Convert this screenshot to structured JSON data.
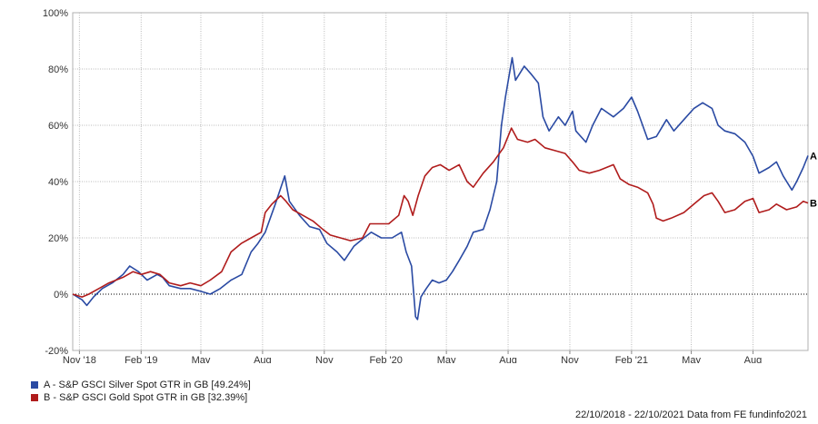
{
  "chart_data": {
    "type": "line",
    "title": "",
    "xlabel": "",
    "ylabel": "",
    "ylim": [
      -20,
      100
    ],
    "y_ticks": [
      -20,
      0,
      20,
      40,
      60,
      80,
      100
    ],
    "y_tick_labels": [
      "-20%",
      "0%",
      "20%",
      "40%",
      "60%",
      "80%",
      "100%"
    ],
    "x_ticks": [
      {
        "date": "2018-11-01",
        "label": "Nov '18"
      },
      {
        "date": "2019-02-01",
        "label": "Feb '19"
      },
      {
        "date": "2019-05-01",
        "label": "May"
      },
      {
        "date": "2019-08-01",
        "label": "Aug"
      },
      {
        "date": "2019-11-01",
        "label": "Nov"
      },
      {
        "date": "2020-02-01",
        "label": "Feb '20"
      },
      {
        "date": "2020-05-01",
        "label": "May"
      },
      {
        "date": "2020-08-01",
        "label": "Aug"
      },
      {
        "date": "2020-11-01",
        "label": "Nov"
      },
      {
        "date": "2021-02-01",
        "label": "Feb '21"
      },
      {
        "date": "2021-05-01",
        "label": "May"
      },
      {
        "date": "2021-08-01",
        "label": "Aug"
      }
    ],
    "x_range": [
      "2018-10-22",
      "2021-10-22"
    ],
    "grid": true,
    "zero_line": "dotted",
    "legend_position": "bottom-left",
    "series": [
      {
        "name": "A - S&P GSCI Silver Spot GTR in GB [49.24%]",
        "end_label": "A",
        "color": "#2a4aa3",
        "points": [
          [
            "2018-10-22",
            0
          ],
          [
            "2018-11-05",
            -2
          ],
          [
            "2018-11-12",
            -4
          ],
          [
            "2018-11-22",
            -1
          ],
          [
            "2018-12-05",
            2
          ],
          [
            "2018-12-20",
            4
          ],
          [
            "2019-01-05",
            7
          ],
          [
            "2019-01-15",
            10
          ],
          [
            "2019-01-28",
            8
          ],
          [
            "2019-02-10",
            5
          ],
          [
            "2019-02-25",
            7
          ],
          [
            "2019-03-05",
            6
          ],
          [
            "2019-03-15",
            3
          ],
          [
            "2019-04-01",
            2
          ],
          [
            "2019-04-15",
            2
          ],
          [
            "2019-05-01",
            1
          ],
          [
            "2019-05-15",
            0
          ],
          [
            "2019-05-30",
            2
          ],
          [
            "2019-06-15",
            5
          ],
          [
            "2019-07-01",
            7
          ],
          [
            "2019-07-15",
            15
          ],
          [
            "2019-07-25",
            18
          ],
          [
            "2019-08-05",
            22
          ],
          [
            "2019-08-20",
            32
          ],
          [
            "2019-09-03",
            42
          ],
          [
            "2019-09-10",
            33
          ],
          [
            "2019-09-25",
            28
          ],
          [
            "2019-10-10",
            24
          ],
          [
            "2019-10-25",
            23
          ],
          [
            "2019-11-05",
            18
          ],
          [
            "2019-11-20",
            15
          ],
          [
            "2019-12-01",
            12
          ],
          [
            "2019-12-15",
            17
          ],
          [
            "2019-12-30",
            20
          ],
          [
            "2020-01-10",
            22
          ],
          [
            "2020-01-25",
            20
          ],
          [
            "2020-02-10",
            20
          ],
          [
            "2020-02-24",
            22
          ],
          [
            "2020-03-02",
            15
          ],
          [
            "2020-03-10",
            10
          ],
          [
            "2020-03-16",
            -8
          ],
          [
            "2020-03-19",
            -9
          ],
          [
            "2020-03-24",
            -1
          ],
          [
            "2020-04-01",
            2
          ],
          [
            "2020-04-10",
            5
          ],
          [
            "2020-04-20",
            4
          ],
          [
            "2020-05-01",
            5
          ],
          [
            "2020-05-10",
            8
          ],
          [
            "2020-05-20",
            12
          ],
          [
            "2020-06-01",
            17
          ],
          [
            "2020-06-10",
            22
          ],
          [
            "2020-06-25",
            23
          ],
          [
            "2020-07-05",
            30
          ],
          [
            "2020-07-15",
            40
          ],
          [
            "2020-07-22",
            60
          ],
          [
            "2020-07-28",
            70
          ],
          [
            "2020-08-07",
            84
          ],
          [
            "2020-08-12",
            76
          ],
          [
            "2020-08-25",
            81
          ],
          [
            "2020-09-05",
            78
          ],
          [
            "2020-09-15",
            75
          ],
          [
            "2020-09-22",
            63
          ],
          [
            "2020-10-01",
            58
          ],
          [
            "2020-10-15",
            63
          ],
          [
            "2020-10-25",
            60
          ],
          [
            "2020-11-05",
            65
          ],
          [
            "2020-11-10",
            58
          ],
          [
            "2020-11-25",
            54
          ],
          [
            "2020-12-05",
            60
          ],
          [
            "2020-12-18",
            66
          ],
          [
            "2021-01-05",
            63
          ],
          [
            "2021-01-20",
            66
          ],
          [
            "2021-02-01",
            70
          ],
          [
            "2021-02-10",
            65
          ],
          [
            "2021-02-25",
            55
          ],
          [
            "2021-03-10",
            56
          ],
          [
            "2021-03-25",
            62
          ],
          [
            "2021-04-05",
            58
          ],
          [
            "2021-04-20",
            62
          ],
          [
            "2021-05-05",
            66
          ],
          [
            "2021-05-18",
            68
          ],
          [
            "2021-06-01",
            66
          ],
          [
            "2021-06-10",
            60
          ],
          [
            "2021-06-20",
            58
          ],
          [
            "2021-07-05",
            57
          ],
          [
            "2021-07-20",
            54
          ],
          [
            "2021-08-01",
            49
          ],
          [
            "2021-08-10",
            43
          ],
          [
            "2021-08-25",
            45
          ],
          [
            "2021-09-05",
            47
          ],
          [
            "2021-09-15",
            42
          ],
          [
            "2021-09-28",
            37
          ],
          [
            "2021-10-05",
            40
          ],
          [
            "2021-10-15",
            45
          ],
          [
            "2021-10-22",
            49.24
          ]
        ]
      },
      {
        "name": "B - S&P GSCI Gold Spot GTR in GB [32.39%]",
        "end_label": "B",
        "color": "#b01c1c",
        "points": [
          [
            "2018-10-22",
            0
          ],
          [
            "2018-11-05",
            -1
          ],
          [
            "2018-11-15",
            0
          ],
          [
            "2018-11-30",
            2
          ],
          [
            "2018-12-15",
            4
          ],
          [
            "2019-01-05",
            6
          ],
          [
            "2019-01-20",
            8
          ],
          [
            "2019-02-01",
            7
          ],
          [
            "2019-02-15",
            8
          ],
          [
            "2019-03-01",
            7
          ],
          [
            "2019-03-15",
            4
          ],
          [
            "2019-04-01",
            3
          ],
          [
            "2019-04-15",
            4
          ],
          [
            "2019-05-01",
            3
          ],
          [
            "2019-05-15",
            5
          ],
          [
            "2019-06-01",
            8
          ],
          [
            "2019-06-15",
            15
          ],
          [
            "2019-06-30",
            18
          ],
          [
            "2019-07-15",
            20
          ],
          [
            "2019-07-30",
            22
          ],
          [
            "2019-08-05",
            29
          ],
          [
            "2019-08-15",
            32
          ],
          [
            "2019-08-28",
            35
          ],
          [
            "2019-09-05",
            33
          ],
          [
            "2019-09-15",
            30
          ],
          [
            "2019-09-30",
            28
          ],
          [
            "2019-10-15",
            26
          ],
          [
            "2019-10-30",
            23
          ],
          [
            "2019-11-10",
            21
          ],
          [
            "2019-11-25",
            20
          ],
          [
            "2019-12-10",
            19
          ],
          [
            "2019-12-28",
            20
          ],
          [
            "2020-01-08",
            25
          ],
          [
            "2020-01-20",
            25
          ],
          [
            "2020-02-05",
            25
          ],
          [
            "2020-02-20",
            28
          ],
          [
            "2020-02-28",
            35
          ],
          [
            "2020-03-05",
            33
          ],
          [
            "2020-03-12",
            28
          ],
          [
            "2020-03-20",
            35
          ],
          [
            "2020-03-30",
            42
          ],
          [
            "2020-04-10",
            45
          ],
          [
            "2020-04-22",
            46
          ],
          [
            "2020-05-05",
            44
          ],
          [
            "2020-05-20",
            46
          ],
          [
            "2020-06-01",
            40
          ],
          [
            "2020-06-10",
            38
          ],
          [
            "2020-06-25",
            43
          ],
          [
            "2020-07-10",
            47
          ],
          [
            "2020-07-25",
            52
          ],
          [
            "2020-08-06",
            59
          ],
          [
            "2020-08-15",
            55
          ],
          [
            "2020-08-30",
            54
          ],
          [
            "2020-09-10",
            55
          ],
          [
            "2020-09-25",
            52
          ],
          [
            "2020-10-10",
            51
          ],
          [
            "2020-10-25",
            50
          ],
          [
            "2020-11-05",
            47
          ],
          [
            "2020-11-15",
            44
          ],
          [
            "2020-11-30",
            43
          ],
          [
            "2020-12-15",
            44
          ],
          [
            "2021-01-05",
            46
          ],
          [
            "2021-01-15",
            41
          ],
          [
            "2021-01-28",
            39
          ],
          [
            "2021-02-10",
            38
          ],
          [
            "2021-02-25",
            36
          ],
          [
            "2021-03-05",
            32
          ],
          [
            "2021-03-10",
            27
          ],
          [
            "2021-03-20",
            26
          ],
          [
            "2021-04-01",
            27
          ],
          [
            "2021-04-20",
            29
          ],
          [
            "2021-05-05",
            32
          ],
          [
            "2021-05-20",
            35
          ],
          [
            "2021-06-01",
            36
          ],
          [
            "2021-06-10",
            33
          ],
          [
            "2021-06-20",
            29
          ],
          [
            "2021-07-05",
            30
          ],
          [
            "2021-07-20",
            33
          ],
          [
            "2021-08-01",
            34
          ],
          [
            "2021-08-10",
            29
          ],
          [
            "2021-08-25",
            30
          ],
          [
            "2021-09-05",
            32
          ],
          [
            "2021-09-20",
            30
          ],
          [
            "2021-10-05",
            31
          ],
          [
            "2021-10-15",
            33
          ],
          [
            "2021-10-22",
            32.39
          ]
        ]
      }
    ]
  },
  "legend": {
    "items": [
      {
        "label": "A - S&P GSCI Silver Spot GTR in GB [49.24%]",
        "color": "#2a4aa3"
      },
      {
        "label": "B - S&P GSCI Gold Spot GTR in GB [32.39%]",
        "color": "#b01c1c"
      }
    ]
  },
  "footer": {
    "text": "22/10/2018 - 22/10/2021 Data from FE fundinfo2021"
  }
}
